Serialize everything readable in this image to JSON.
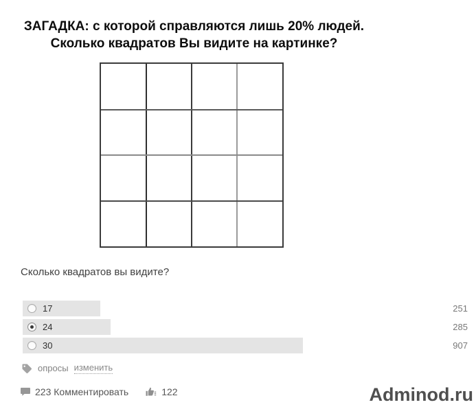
{
  "puzzle": {
    "title_line1": "ЗАГАДКА: с которой справляются лишь 20% людей.",
    "title_line2": "Сколько квадратов Вы видите на картинке?",
    "grid": {
      "rows": 4,
      "cols": 4
    }
  },
  "poll": {
    "question": "Сколько квадратов вы видите?",
    "options": [
      {
        "label": "17",
        "votes": "251",
        "selected": false,
        "bar_width_pct": 17.4
      },
      {
        "label": "24",
        "votes": "285",
        "selected": true,
        "bar_width_pct": 19.8
      },
      {
        "label": "30",
        "votes": "907",
        "selected": false,
        "bar_width_pct": 63.0
      }
    ],
    "bar_color": "#e4e4e4"
  },
  "meta": {
    "tag_label": "опросы",
    "edit_label": "изменить",
    "comments_text": "223 Комментировать",
    "likes_count": "122"
  },
  "branding": {
    "site_name": "Adminod.ru"
  }
}
